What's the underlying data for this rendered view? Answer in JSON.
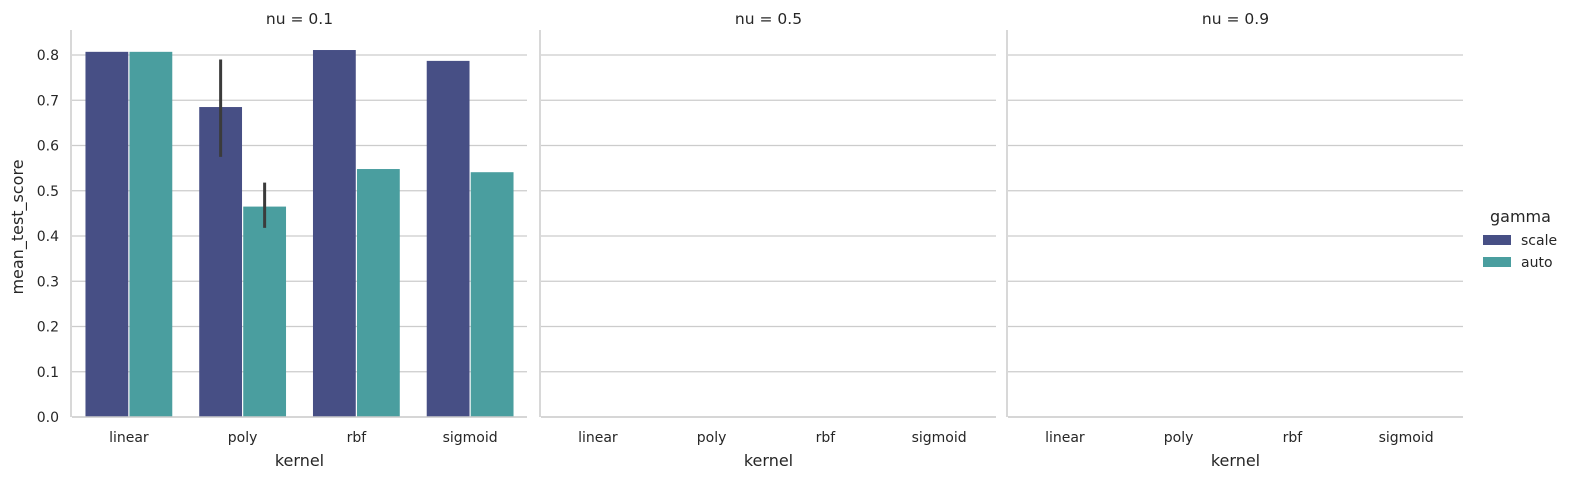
{
  "chart_data": {
    "type": "bar",
    "facet_titles": [
      "nu = 0.1",
      "nu = 0.5",
      "nu = 0.9"
    ],
    "categories": [
      "linear",
      "poly",
      "rbf",
      "sigmoid"
    ],
    "xlabel": "kernel",
    "ylabel": "mean_test_score",
    "ylim": [
      0,
      0.85
    ],
    "yticks": [
      "0.0",
      "0.1",
      "0.2",
      "0.3",
      "0.4",
      "0.5",
      "0.6",
      "0.7",
      "0.8"
    ],
    "grid": true,
    "legend": {
      "title": "gamma",
      "placement": "right"
    },
    "series": [
      {
        "name": "scale",
        "color": "#474f85",
        "panels": [
          {
            "values": [
              0.807,
              0.685,
              0.811,
              0.787
            ],
            "error": [
              null,
              [
                0.575,
                0.79
              ],
              null,
              null
            ]
          },
          {
            "values": [
              0,
              0,
              0,
              0
            ],
            "error": [
              null,
              null,
              null,
              null
            ]
          },
          {
            "values": [
              0,
              0,
              0,
              0
            ],
            "error": [
              null,
              null,
              null,
              null
            ]
          }
        ]
      },
      {
        "name": "auto",
        "color": "#4a9e9f",
        "panels": [
          {
            "values": [
              0.807,
              0.465,
              0.548,
              0.541
            ],
            "error": [
              null,
              [
                0.418,
                0.518
              ],
              null,
              null
            ]
          },
          {
            "values": [
              0,
              0,
              0,
              0
            ],
            "error": [
              null,
              null,
              null,
              null
            ]
          },
          {
            "values": [
              0,
              0,
              0,
              0
            ],
            "error": [
              null,
              null,
              null,
              null
            ]
          }
        ]
      }
    ]
  }
}
